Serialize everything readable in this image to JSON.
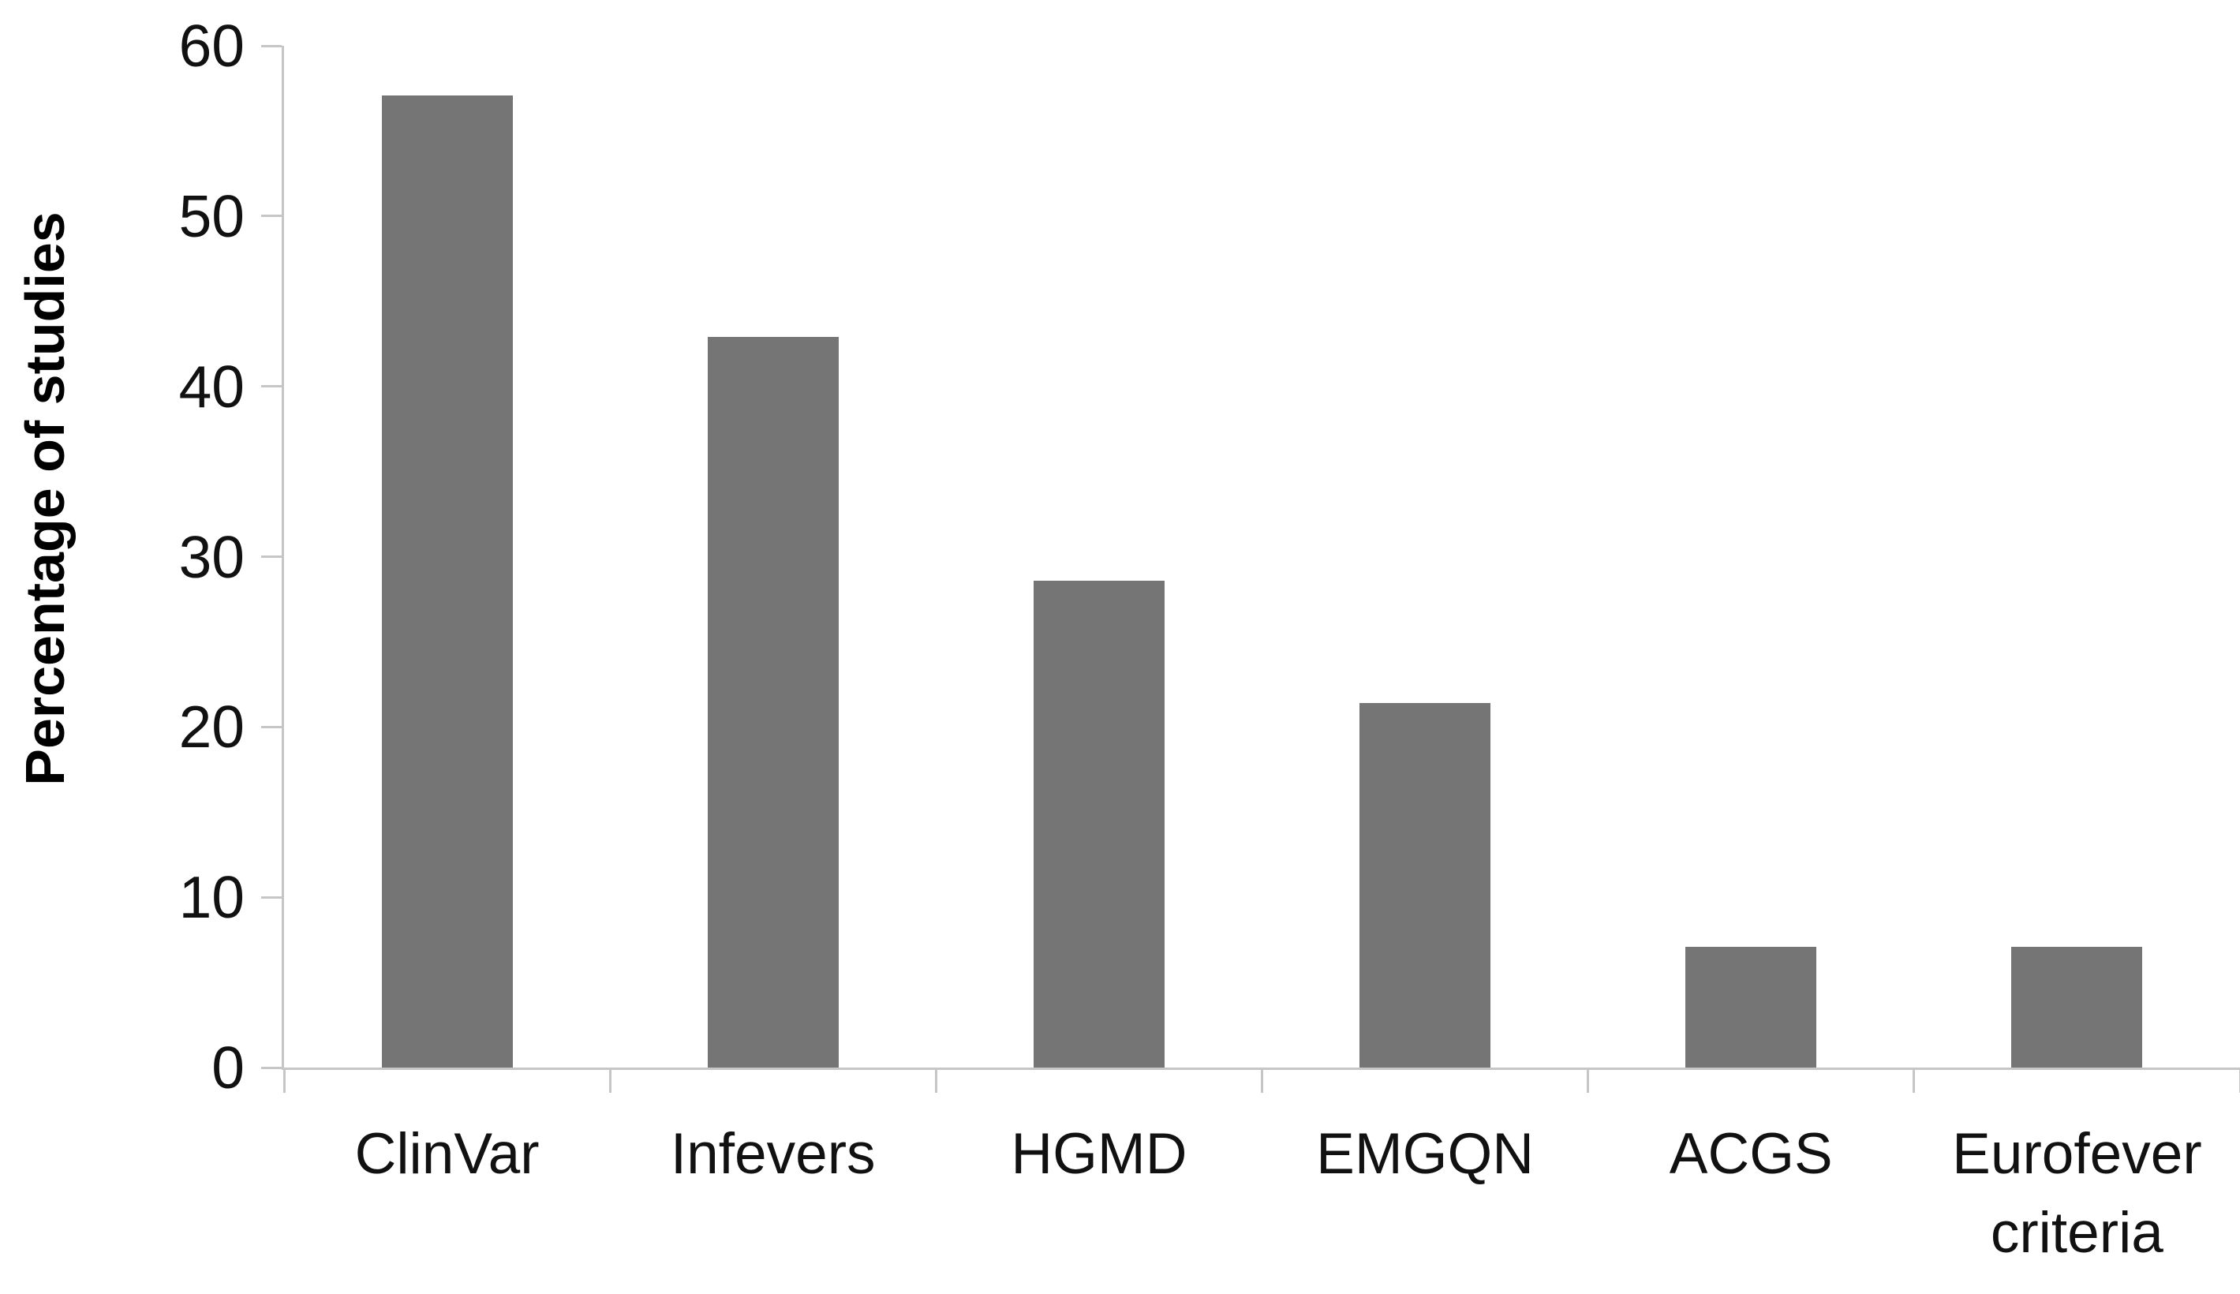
{
  "chart_data": {
    "type": "bar",
    "categories": [
      "ClinVar",
      "Infevers",
      "HGMD",
      "EMGQN",
      "ACGS",
      "Eurofever criteria"
    ],
    "values": [
      57.1,
      42.9,
      28.6,
      21.4,
      7.1,
      7.1
    ],
    "title": "",
    "xlabel": "",
    "ylabel": "Percentage of studies",
    "ylim": [
      0,
      60
    ],
    "yticks": [
      60,
      50,
      40,
      30,
      20,
      10,
      0
    ],
    "grid": false,
    "legend": false,
    "bar_color": "#757575",
    "axis_color": "#c6c6c6",
    "text_color": "#111111"
  }
}
